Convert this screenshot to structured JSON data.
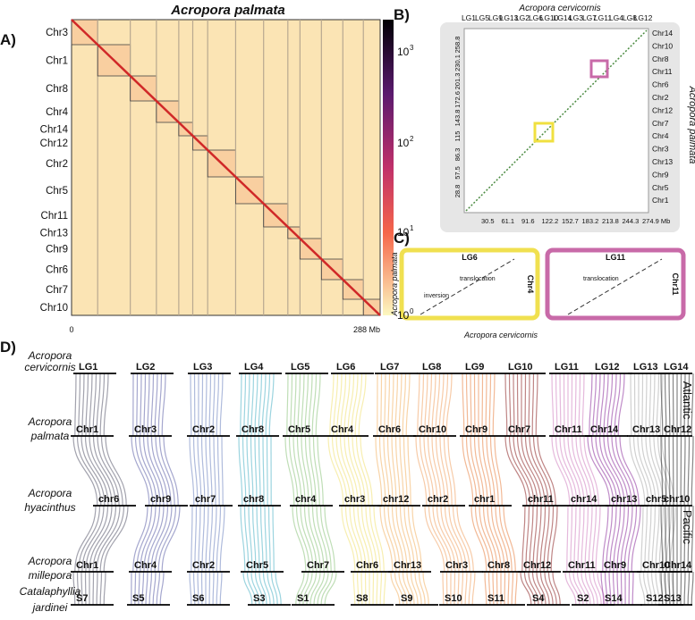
{
  "panel_labels": [
    "A)",
    "B)",
    "C)",
    "D)"
  ],
  "panel_a": {
    "title": "Acropora palmata",
    "chromosomes": [
      "Chr3",
      "Chr1",
      "Chr8",
      "Chr4",
      "Chr14",
      "Chr12",
      "Chr2",
      "Chr5",
      "Chr11",
      "Chr13",
      "Chr9",
      "Chr6",
      "Chr7",
      "Chr10"
    ],
    "axis_start": "0",
    "axis_end": "288 Mb",
    "colorbar_ticks": [
      {
        "base": "10",
        "exp": "3"
      },
      {
        "base": "10",
        "exp": "2"
      },
      {
        "base": "10",
        "exp": "1"
      },
      {
        "base": "10",
        "exp": "0"
      }
    ]
  },
  "panel_b": {
    "x_title": "Acropora cervicornis",
    "y_title": "Acropora palmata",
    "top_labels": [
      "LG1",
      "LG5",
      "LG9",
      "LG13",
      "LG2",
      "LG6",
      "LG10",
      "LG14",
      "LG3",
      "LG7",
      "LG11",
      "LG4",
      "LG8",
      "LG12"
    ],
    "right_labels": [
      "Chr14",
      "Chr10",
      "Chr8",
      "Chr11",
      "Chr6",
      "Chr2",
      "Chr12",
      "Chr7",
      "Chr4",
      "Chr3",
      "Chr13",
      "Chr9",
      "Chr5",
      "Chr1"
    ],
    "left_ticks": [
      "28.8",
      "57.5",
      "86.3",
      "115",
      "143.8",
      "172.6",
      "201.3",
      "230.1",
      "258.8"
    ],
    "bottom_ticks": [
      "30.5",
      "61.1",
      "91.6",
      "122.2",
      "152.7",
      "183.2",
      "213.8",
      "244.3",
      "274.9 Mb"
    ]
  },
  "panel_c": {
    "left_box": {
      "top": "LG6",
      "right": "Chr4",
      "notes": [
        "translocation",
        "inversion"
      ]
    },
    "right_box": {
      "top": "LG11",
      "right": "Chr11",
      "notes": [
        "translocation"
      ]
    },
    "y_title": "Acropora palmata",
    "x_title": "Acropora cervicornis"
  },
  "panel_d": {
    "species": [
      {
        "genus": "Acropora",
        "epithet": "cervicornis",
        "labels": [
          "LG1",
          "LG2",
          "LG3",
          "LG4",
          "LG5",
          "LG6",
          "LG7",
          "LG8",
          "LG9",
          "LG10",
          "LG11",
          "LG12",
          "LG13",
          "LG14"
        ]
      },
      {
        "genus": "Acropora",
        "epithet": "palmata",
        "labels": [
          "Chr1",
          "Chr3",
          "Chr2",
          "Chr8",
          "Chr5",
          "Chr4",
          "Chr6",
          "Chr10",
          "Chr9",
          "Chr7",
          "Chr11",
          "Chr14",
          "Chr13",
          "Chr12"
        ]
      },
      {
        "genus": "Acropora",
        "epithet": "hyacinthus",
        "labels": [
          "chr6",
          "chr9",
          "chr7",
          "chr8",
          "chr4",
          "chr3",
          "chr12",
          "chr2",
          "chr1",
          "chr11",
          "chr14",
          "chr13",
          "chr5",
          "chr10"
        ]
      },
      {
        "genus": "Acropora",
        "epithet": "millepora",
        "labels": [
          "Chr1",
          "Chr4",
          "Chr2",
          "Chr5",
          "Chr7",
          "Chr6",
          "Chr13",
          "Chr3",
          "Chr8",
          "Chr12",
          "Chr11",
          "Chr9",
          "Chr10",
          "Chr14"
        ]
      },
      {
        "genus": "Catalaphyllia",
        "epithet": "jardinei",
        "labels": [
          "S7",
          "S5",
          "S6",
          "S3",
          "S1",
          "S8",
          "S9",
          "S10",
          "S11",
          "S4",
          "S2",
          "S14",
          "S12",
          "S13"
        ]
      }
    ],
    "regions": [
      "Atlantic",
      "Pacific"
    ]
  }
}
